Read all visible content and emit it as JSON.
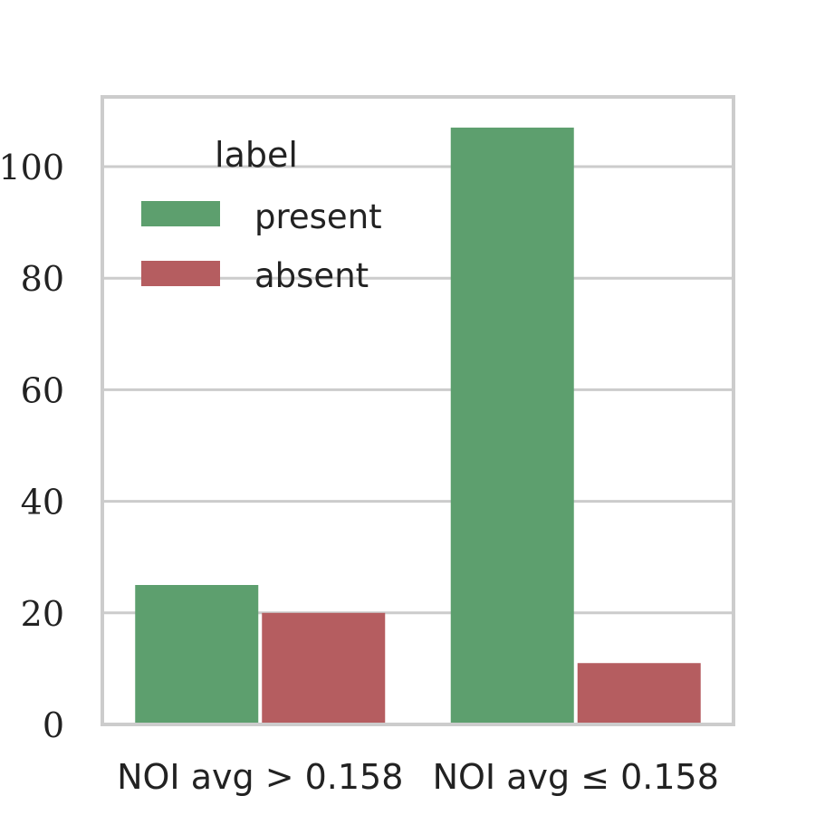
{
  "chart_data": {
    "type": "bar",
    "categories": [
      "NOI avg > 0.158",
      "NOI avg ≤ 0.158"
    ],
    "series": [
      {
        "name": "present",
        "values": [
          25,
          107
        ]
      },
      {
        "name": "absent",
        "values": [
          20,
          11
        ]
      }
    ],
    "title": "",
    "xlabel": "",
    "ylabel": "",
    "ylim": [
      0,
      112.5
    ],
    "yticks": [
      0,
      20,
      40,
      60,
      80,
      100
    ],
    "grid": true,
    "legend": {
      "title": "label",
      "placement": "upper-left"
    },
    "colors": {
      "present": "#5d9f6e",
      "absent": "#b55d60",
      "grid": "#cccccc",
      "frame": "#cccccc"
    }
  }
}
